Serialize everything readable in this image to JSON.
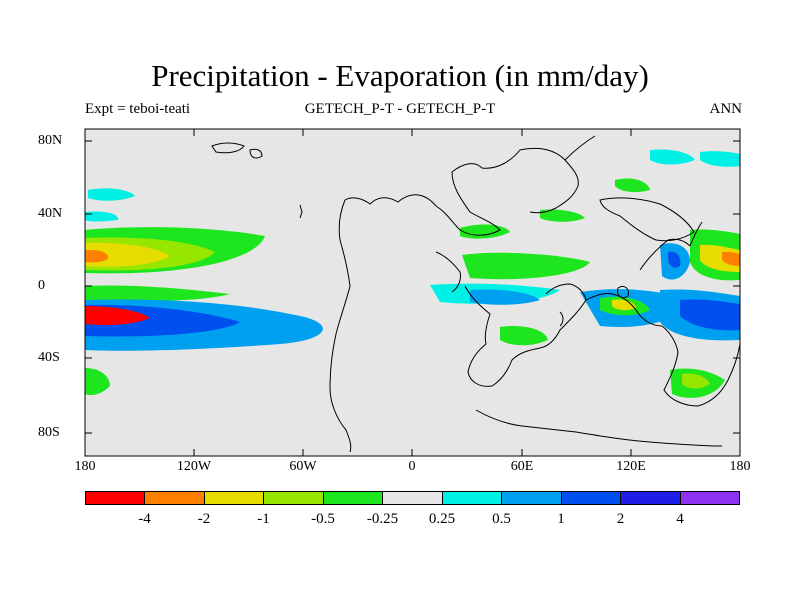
{
  "title": "Precipitation - Evaporation (in mm/day)",
  "subtitle_left": "Expt = teboi-teati",
  "subtitle_center": "GETECH_P-T - GETECH_P-T",
  "subtitle_right": "ANN",
  "lat_labels": [
    "80N",
    "40N",
    "0",
    "40S",
    "80S"
  ],
  "lon_labels": [
    "180",
    "120W",
    "60W",
    "0",
    "60E",
    "120E",
    "180"
  ],
  "colorbar": {
    "colors": [
      "#ff0000",
      "#ff8000",
      "#e6dc00",
      "#96e600",
      "#1ee61e",
      "#e6e6e6",
      "#00f0e6",
      "#00a0f0",
      "#0050f0",
      "#1e1ee6",
      "#8c32f0"
    ],
    "labels": [
      "-4",
      "-2",
      "-1",
      "-0.5",
      "-0.25",
      "0.25",
      "0.5",
      "1",
      "2",
      "4"
    ]
  },
  "map_background": "#e6e6e6",
  "chart_data": {
    "type": "heatmap",
    "title": "Precipitation - Evaporation (in mm/day)",
    "variable": "P-E",
    "units": "mm/day",
    "period": "ANN",
    "xlim": [
      -180,
      180
    ],
    "ylim": [
      -90,
      90
    ],
    "x_ticks": [
      "180",
      "120W",
      "60W",
      "0",
      "60E",
      "120E",
      "180"
    ],
    "y_ticks": [
      "80N",
      "40N",
      "0",
      "40S",
      "80S"
    ],
    "levels": [
      -4,
      -2,
      -1,
      -0.5,
      -0.25,
      0.25,
      0.5,
      1,
      2,
      4
    ]
  }
}
